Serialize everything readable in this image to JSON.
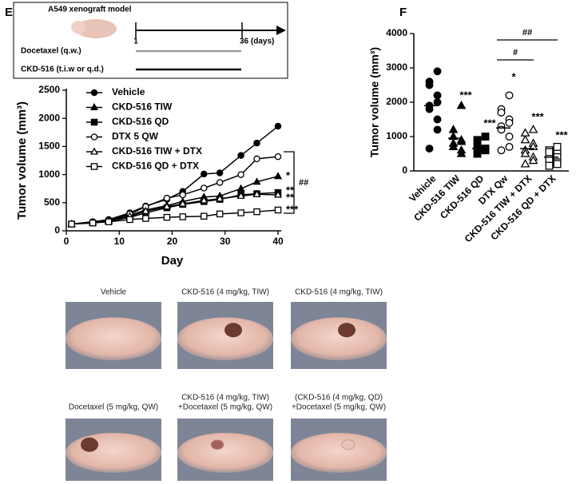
{
  "panel_labels": [
    "E",
    "F"
  ],
  "schematic": {
    "title": "A549 xenograft model",
    "start": "1",
    "end": "36 (days)",
    "rows": [
      "Docetaxel (q.w.)",
      "CKD-516 (t.i.w or q.d.)"
    ]
  },
  "chart_data": [
    {
      "type": "line",
      "xlabel": "Day",
      "ylabel": "Tumor volume (mm³)",
      "x": [
        1,
        5,
        8,
        12,
        15,
        19,
        22,
        26,
        29,
        33,
        36,
        40
      ],
      "xlim": [
        0,
        40
      ],
      "xticks": [
        0,
        10,
        20,
        30,
        40
      ],
      "ylim": [
        0,
        2500
      ],
      "yticks": [
        0,
        500,
        1000,
        1500,
        2000,
        2500
      ],
      "series": [
        {
          "name": "Vehicle",
          "color": "#000000",
          "marker": "circle",
          "filled": true,
          "values": [
            120,
            160,
            200,
            320,
            440,
            560,
            700,
            1010,
            1030,
            1340,
            1560,
            1860
          ]
        },
        {
          "name": "CKD-516 TIW",
          "color": "#000000",
          "marker": "triangle",
          "filled": true,
          "values": [
            120,
            150,
            180,
            280,
            370,
            450,
            520,
            600,
            620,
            750,
            870,
            970
          ]
        },
        {
          "name": "CKD-516 QD",
          "color": "#000000",
          "marker": "square",
          "filled": true,
          "values": [
            120,
            140,
            170,
            240,
            320,
            410,
            470,
            520,
            560,
            640,
            660,
            680
          ]
        },
        {
          "name": "DTX 5 QW",
          "color": "#000000",
          "marker": "circle",
          "filled": false,
          "values": [
            120,
            160,
            190,
            300,
            430,
            580,
            640,
            760,
            860,
            1000,
            1280,
            1320
          ]
        },
        {
          "name": "CKD-516 TIW + DTX",
          "color": "#000000",
          "marker": "triangle",
          "filled": false,
          "values": [
            120,
            150,
            170,
            260,
            350,
            430,
            480,
            540,
            570,
            620,
            650,
            640
          ]
        },
        {
          "name": "CKD-516 QD + DTX",
          "color": "#000000",
          "marker": "square",
          "filled": false,
          "values": [
            120,
            140,
            160,
            200,
            220,
            240,
            250,
            260,
            300,
            320,
            340,
            370
          ]
        }
      ],
      "annotations": [
        "*",
        "**",
        "**",
        "***"
      ],
      "bracket_label": "##"
    },
    {
      "type": "dot",
      "ylabel": "Tumor volume (mm³)",
      "categories": [
        "Vehicle",
        "CKD-516 TIW",
        "CKD-516 QD",
        "DTX Qw",
        "CKD-516 TIW + DTX",
        "CKD-516 QD + DTX"
      ],
      "markers": [
        "circle",
        "triangle",
        "square",
        "circle",
        "triangle",
        "square"
      ],
      "filled": [
        true,
        true,
        true,
        false,
        false,
        false
      ],
      "points": [
        [
          2900,
          2600,
          2500,
          2200,
          2000,
          1900,
          1800,
          1500,
          1200,
          650
        ],
        [
          1900,
          1200,
          1000,
          900,
          850,
          800,
          700,
          600,
          500
        ],
        [
          1000,
          900,
          700,
          650,
          600,
          500
        ],
        [
          2200,
          1800,
          1700,
          1500,
          1400,
          1300,
          1200,
          1000,
          700,
          600
        ],
        [
          1200,
          1100,
          900,
          800,
          700,
          600,
          500,
          400,
          300,
          200
        ],
        [
          700,
          600,
          550,
          500,
          400,
          350,
          300,
          250,
          200,
          150
        ]
      ],
      "means": [
        1900,
        950,
        650,
        1250,
        650,
        400
      ],
      "ylim": [
        0,
        4000
      ],
      "yticks": [
        0,
        1000,
        2000,
        3000,
        4000
      ],
      "annotations": [
        "***",
        "***",
        "*",
        "***",
        "***"
      ],
      "brackets": [
        "#",
        "##"
      ]
    }
  ],
  "photos": [
    {
      "caption": [
        "Vehicle"
      ]
    },
    {
      "caption": [
        "CKD-516 (4 mg/kg, TIW)"
      ]
    },
    {
      "caption": [
        "CKD-516 (4 mg/kg, TIW)"
      ]
    },
    {
      "caption": [
        "Docetaxel (5 mg/kg, QW)"
      ]
    },
    {
      "caption": [
        "CKD-516 (4 mg/kg, TIW)",
        "+Docetaxel (5 mg/kg, QW)"
      ]
    },
    {
      "caption": [
        "(CKD-516 (4 mg/kg, QD)",
        "+Docetaxel (5 mg/kg, QW)"
      ]
    }
  ]
}
